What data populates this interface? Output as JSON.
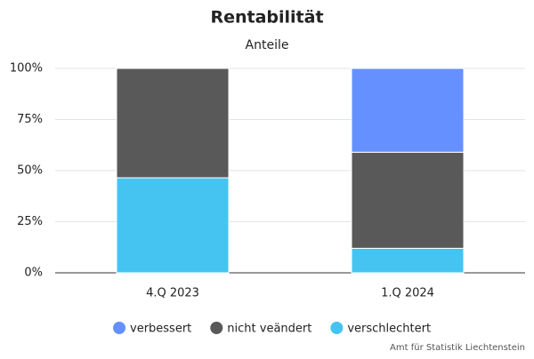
{
  "chart_data": {
    "type": "stacked-bar",
    "title": "Rentabilität",
    "subtitle": "Anteile",
    "categories": [
      "4.Q 2023",
      "1.Q 2024"
    ],
    "series": [
      {
        "name": "verbessert",
        "color": "#6590ff",
        "values": [
          0,
          41
        ]
      },
      {
        "name": "nicht veändert",
        "color": "#595959",
        "values": [
          53.5,
          47
        ]
      },
      {
        "name": "verschlechtert",
        "color": "#45c4f2",
        "values": [
          46.5,
          12
        ]
      }
    ],
    "ylim": [
      0,
      100
    ],
    "yticks": [
      {
        "value": 0,
        "label": "0%"
      },
      {
        "value": 25,
        "label": "25%"
      },
      {
        "value": 50,
        "label": "50%"
      },
      {
        "value": 75,
        "label": "75%"
      },
      {
        "value": 100,
        "label": "100%"
      }
    ],
    "grid": true,
    "legend": "bottom",
    "credit": "Amt für Statistik Liechtenstein"
  }
}
